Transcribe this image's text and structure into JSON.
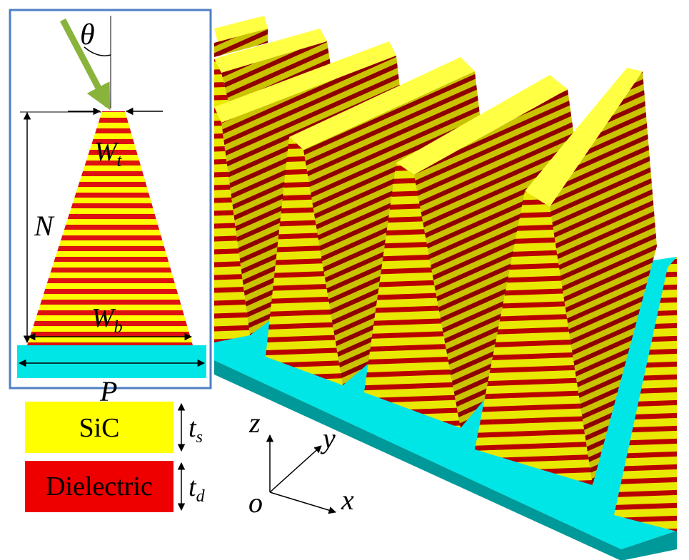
{
  "inset": {
    "angle_label": "θ",
    "width_top_label": "W",
    "width_top_sub": "t",
    "layers_label": "N",
    "width_bottom_label": "W",
    "width_bottom_sub": "b",
    "period_label": "P"
  },
  "legend": {
    "sic_text": "SiC",
    "sic_thickness": "t",
    "sic_thickness_sub": "s",
    "dielectric_text": "Dielectric",
    "dielectric_thickness": "t",
    "dielectric_thickness_sub": "d"
  },
  "axes": {
    "z": "z",
    "y": "y",
    "x": "x",
    "origin": "o"
  },
  "colors": {
    "sic": "#ffff00",
    "dielectric": "#cc0000",
    "substrate": "#00dede",
    "inset_frame": "#4f7fc4",
    "incident_arrow": "#8ab33c"
  }
}
